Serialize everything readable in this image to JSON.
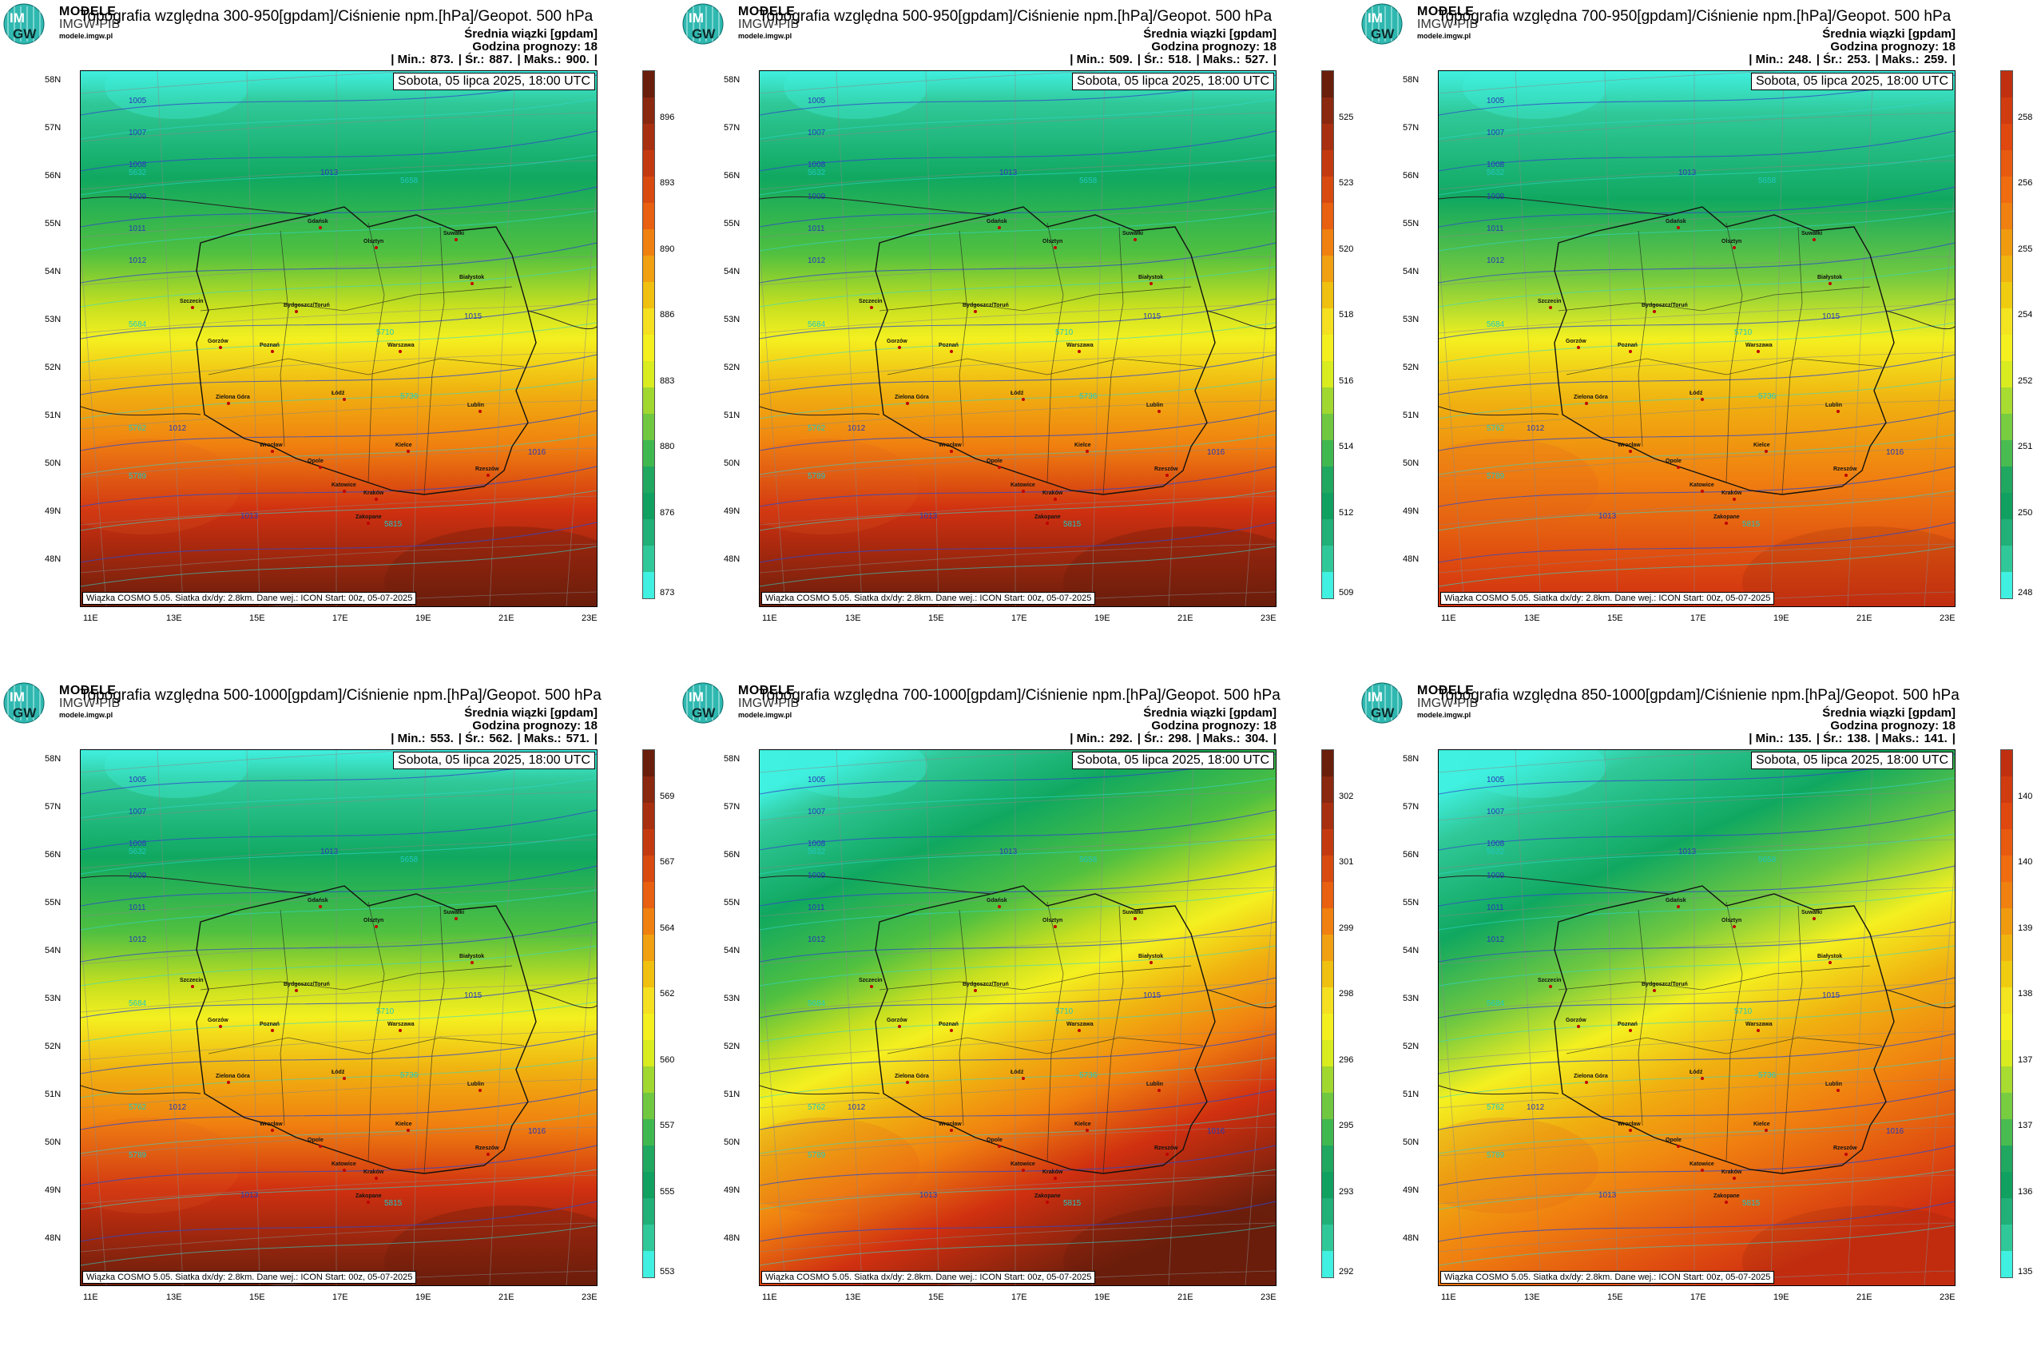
{
  "panels": [
    {
      "id": "p1",
      "title": "Topografia względna 300-950[gpdam]/Ciśnienie npm.[hPa]/Geopot. 500 hPa",
      "subtitle": "Średnia wiązki [gpdam]",
      "hours": "Godzina prognozy: 18",
      "stats": {
        "min_label": "| Min.:",
        "min": "873.",
        "avg_label": "| Śr.:",
        "avg": "887.",
        "max_label": "| Maks.:",
        "max": "900.",
        "end": "|"
      },
      "colorbar": [
        "873",
        "876",
        "880",
        "883",
        "886",
        "890",
        "893",
        "896"
      ],
      "field": "ns",
      "scheme": "full"
    },
    {
      "id": "p2",
      "title": "Topografia względna 500-950[gpdam]/Ciśnienie npm.[hPa]/Geopot. 500 hPa",
      "subtitle": "Średnia wiązki [gpdam]",
      "hours": "Godzina prognozy: 18",
      "stats": {
        "min_label": "| Min.:",
        "min": "509.",
        "avg_label": "| Śr.:",
        "avg": "518.",
        "max_label": "| Maks.:",
        "max": "527.",
        "end": "|"
      },
      "colorbar": [
        "509",
        "512",
        "514",
        "516",
        "518",
        "520",
        "523",
        "525"
      ],
      "field": "ns",
      "scheme": "full"
    },
    {
      "id": "p3",
      "title": "Topografia względna 700-950[gpdam]/Ciśnienie npm.[hPa]/Geopot. 500 hPa",
      "subtitle": "Średnia wiązki [gpdam]",
      "hours": "Godzina prognozy: 18",
      "stats": {
        "min_label": "| Min.:",
        "min": "248.",
        "avg_label": "| Śr.:",
        "avg": "253.",
        "max_label": "| Maks.:",
        "max": "259.",
        "end": "|"
      },
      "colorbar": [
        "248",
        "250",
        "251",
        "252",
        "254",
        "255",
        "256",
        "258"
      ],
      "field": "ns",
      "scheme": "soft"
    },
    {
      "id": "p4",
      "title": "Topografia względna 500-1000[gpdam]/Ciśnienie npm.[hPa]/Geopot. 500 hPa",
      "subtitle": "Średnia wiązki [gpdam]",
      "hours": "Godzina prognozy: 18",
      "stats": {
        "min_label": "| Min.:",
        "min": "553.",
        "avg_label": "| Śr.:",
        "avg": "562.",
        "max_label": "| Maks.:",
        "max": "571.",
        "end": "|"
      },
      "colorbar": [
        "553",
        "555",
        "557",
        "560",
        "562",
        "564",
        "567",
        "569"
      ],
      "field": "ns",
      "scheme": "full"
    },
    {
      "id": "p5",
      "title": "Topografia względna 700-1000[gpdam]/Ciśnienie npm.[hPa]/Geopot. 500 hPa",
      "subtitle": "Średnia wiązki [gpdam]",
      "hours": "Godzina prognozy: 18",
      "stats": {
        "min_label": "| Min.:",
        "min": "292.",
        "avg_label": "| Śr.:",
        "avg": "298.",
        "max_label": "| Maks.:",
        "max": "304.",
        "end": "|"
      },
      "colorbar": [
        "292",
        "293",
        "295",
        "296",
        "298",
        "299",
        "301",
        "302"
      ],
      "field": "diag",
      "scheme": "full"
    },
    {
      "id": "p6",
      "title": "Topografia względna 850-1000[gpdam]/Ciśnienie npm.[hPa]/Geopot. 500 hPa",
      "subtitle": "Średnia wiązki [gpdam]",
      "hours": "Godzina prognozy: 18",
      "stats": {
        "min_label": "| Min.:",
        "min": "135.",
        "avg_label": "| Śr.:",
        "avg": "138.",
        "max_label": "| Maks.:",
        "max": "141.",
        "end": "|"
      },
      "colorbar": [
        "135",
        "136",
        "137",
        "137",
        "138",
        "139",
        "140",
        "140"
      ],
      "field": "diag",
      "scheme": "soft"
    }
  ],
  "shared": {
    "brand_line1": "MODELE",
    "brand_line2": "IMGW-PIB",
    "brand_url": "modele.imgw.pl",
    "logo_top": "IM",
    "logo_bottom": "GW",
    "date": "Sobota, 05 lipca 2025, 18:00 UTC",
    "info": "Wiązka COSMO 5.05. Siatka dx/dy: 2.8km. Dane wej.: ICON Start: 00z, 05-07-2025",
    "lat_labels": [
      "58N",
      "57N",
      "56N",
      "55N",
      "54N",
      "53N",
      "52N",
      "51N",
      "50N",
      "49N",
      "48N"
    ],
    "lon_labels": [
      "11E",
      "13E",
      "15E",
      "17E",
      "19E",
      "21E",
      "23E"
    ],
    "isobars": [
      "1005",
      "1007",
      "1008",
      "1009",
      "1011",
      "1012",
      "1013",
      "1015",
      "1016",
      "1012",
      "1013"
    ],
    "geopot": [
      "5632",
      "5658",
      "5684",
      "5710",
      "5736",
      "5762",
      "5789",
      "5815"
    ],
    "cities": [
      "Gdańsk",
      "Olsztyn",
      "Suwałki",
      "Szczecin",
      "Białystok",
      "Bydgoszcz/Toruń",
      "Gorzów",
      "Poznań",
      "Warszawa",
      "Zielona Góra",
      "Łódź",
      "Lublin",
      "Wrocław",
      "Kielce",
      "Opole",
      "Rzeszów",
      "Katowice",
      "Kraków",
      "Zakopane"
    ],
    "colors": {
      "cyan": "#40f0e0",
      "green": "#10a860",
      "yellow": "#f4f020",
      "orange": "#f08010",
      "red": "#d03010",
      "brown": "#6a1e0c"
    }
  }
}
